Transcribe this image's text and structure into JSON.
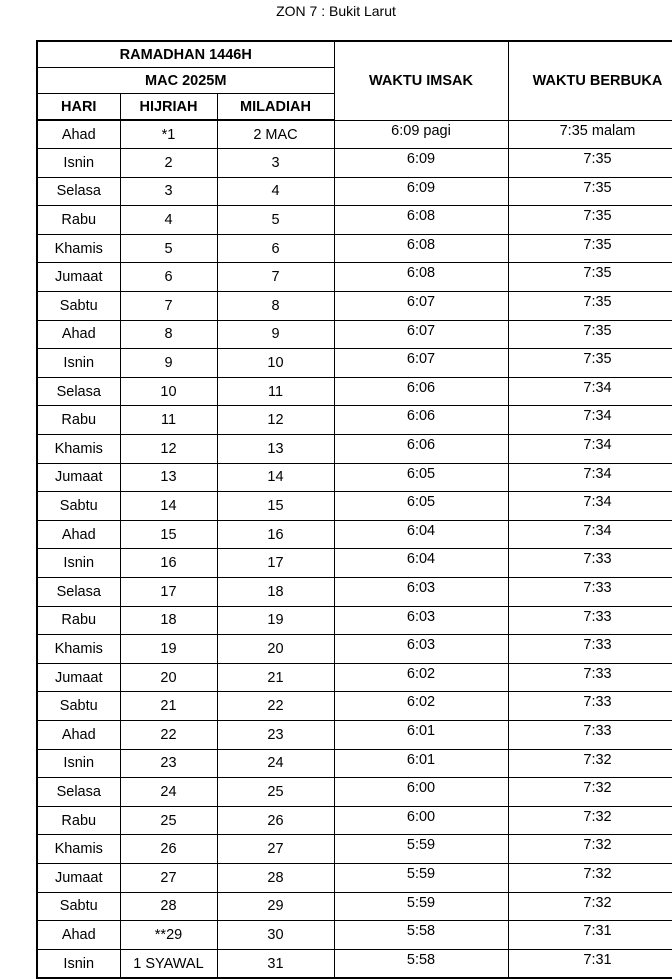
{
  "title": "ZON 7 : Bukit Larut",
  "header": {
    "month_hijri": "RAMADHAN 1446H",
    "month_masihi": "MAC 2025M",
    "col_hari": "HARI",
    "col_hijriah": "HIJRIAH",
    "col_miladiah": "MILADIAH",
    "col_imsak": "WAKTU IMSAK",
    "col_berbuka": "WAKTU BERBUKA"
  },
  "rows": [
    {
      "hari": "Ahad",
      "hijriah": "*1",
      "miladiah": "2 MAC",
      "imsak": "6:09 pagi",
      "berbuka": "7:35 malam"
    },
    {
      "hari": "Isnin",
      "hijriah": "2",
      "miladiah": "3",
      "imsak": "6:09",
      "berbuka": "7:35"
    },
    {
      "hari": "Selasa",
      "hijriah": "3",
      "miladiah": "4",
      "imsak": "6:09",
      "berbuka": "7:35"
    },
    {
      "hari": "Rabu",
      "hijriah": "4",
      "miladiah": "5",
      "imsak": "6:08",
      "berbuka": "7:35"
    },
    {
      "hari": "Khamis",
      "hijriah": "5",
      "miladiah": "6",
      "imsak": "6:08",
      "berbuka": "7:35"
    },
    {
      "hari": "Jumaat",
      "hijriah": "6",
      "miladiah": "7",
      "imsak": "6:08",
      "berbuka": "7:35"
    },
    {
      "hari": "Sabtu",
      "hijriah": "7",
      "miladiah": "8",
      "imsak": "6:07",
      "berbuka": "7:35"
    },
    {
      "hari": "Ahad",
      "hijriah": "8",
      "miladiah": "9",
      "imsak": "6:07",
      "berbuka": "7:35"
    },
    {
      "hari": "Isnin",
      "hijriah": "9",
      "miladiah": "10",
      "imsak": "6:07",
      "berbuka": "7:35"
    },
    {
      "hari": "Selasa",
      "hijriah": "10",
      "miladiah": "11",
      "imsak": "6:06",
      "berbuka": "7:34"
    },
    {
      "hari": "Rabu",
      "hijriah": "11",
      "miladiah": "12",
      "imsak": "6:06",
      "berbuka": "7:34"
    },
    {
      "hari": "Khamis",
      "hijriah": "12",
      "miladiah": "13",
      "imsak": "6:06",
      "berbuka": "7:34"
    },
    {
      "hari": "Jumaat",
      "hijriah": "13",
      "miladiah": "14",
      "imsak": "6:05",
      "berbuka": "7:34"
    },
    {
      "hari": "Sabtu",
      "hijriah": "14",
      "miladiah": "15",
      "imsak": "6:05",
      "berbuka": "7:34"
    },
    {
      "hari": "Ahad",
      "hijriah": "15",
      "miladiah": "16",
      "imsak": "6:04",
      "berbuka": "7:34"
    },
    {
      "hari": "Isnin",
      "hijriah": "16",
      "miladiah": "17",
      "imsak": "6:04",
      "berbuka": "7:33"
    },
    {
      "hari": "Selasa",
      "hijriah": "17",
      "miladiah": "18",
      "imsak": "6:03",
      "berbuka": "7:33"
    },
    {
      "hari": "Rabu",
      "hijriah": "18",
      "miladiah": "19",
      "imsak": "6:03",
      "berbuka": "7:33"
    },
    {
      "hari": "Khamis",
      "hijriah": "19",
      "miladiah": "20",
      "imsak": "6:03",
      "berbuka": "7:33"
    },
    {
      "hari": "Jumaat",
      "hijriah": "20",
      "miladiah": "21",
      "imsak": "6:02",
      "berbuka": "7:33"
    },
    {
      "hari": "Sabtu",
      "hijriah": "21",
      "miladiah": "22",
      "imsak": "6:02",
      "berbuka": "7:33"
    },
    {
      "hari": "Ahad",
      "hijriah": "22",
      "miladiah": "23",
      "imsak": "6:01",
      "berbuka": "7:33"
    },
    {
      "hari": "Isnin",
      "hijriah": "23",
      "miladiah": "24",
      "imsak": "6:01",
      "berbuka": "7:32"
    },
    {
      "hari": "Selasa",
      "hijriah": "24",
      "miladiah": "25",
      "imsak": "6:00",
      "berbuka": "7:32"
    },
    {
      "hari": "Rabu",
      "hijriah": "25",
      "miladiah": "26",
      "imsak": "6:00",
      "berbuka": "7:32"
    },
    {
      "hari": "Khamis",
      "hijriah": "26",
      "miladiah": "27",
      "imsak": "5:59",
      "berbuka": "7:32"
    },
    {
      "hari": "Jumaat",
      "hijriah": "27",
      "miladiah": "28",
      "imsak": "5:59",
      "berbuka": "7:32"
    },
    {
      "hari": "Sabtu",
      "hijriah": "28",
      "miladiah": "29",
      "imsak": "5:59",
      "berbuka": "7:32"
    },
    {
      "hari": "Ahad",
      "hijriah": "**29",
      "miladiah": "30",
      "imsak": "5:58",
      "berbuka": "7:31"
    },
    {
      "hari": "Isnin",
      "hijriah": "1 SYAWAL",
      "miladiah": "31",
      "imsak": "5:58",
      "berbuka": "7:31"
    }
  ]
}
